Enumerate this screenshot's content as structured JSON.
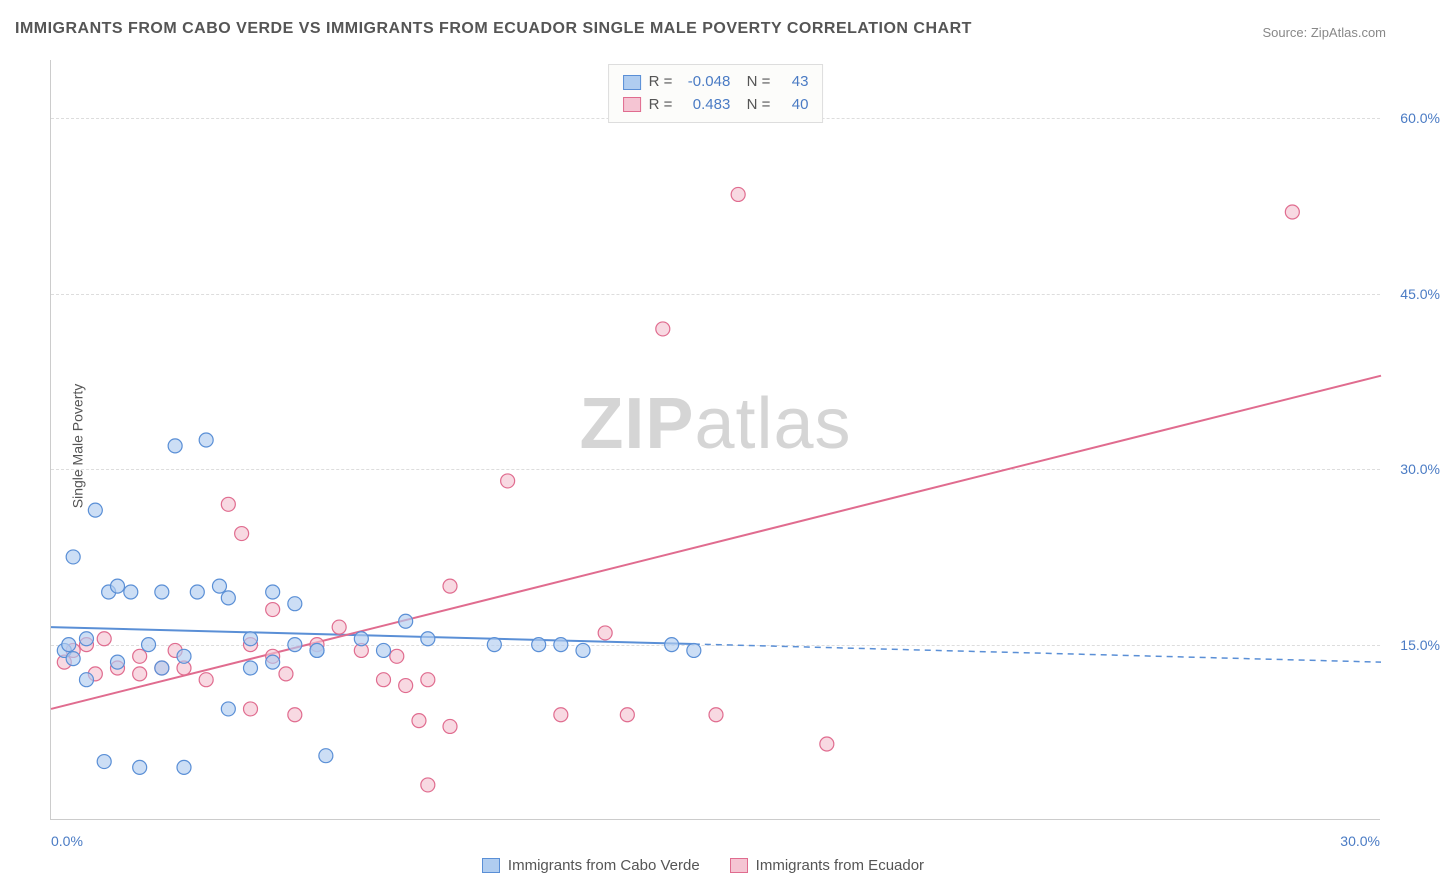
{
  "title": "IMMIGRANTS FROM CABO VERDE VS IMMIGRANTS FROM ECUADOR SINGLE MALE POVERTY CORRELATION CHART",
  "source": "Source: ZipAtlas.com",
  "y_axis_title": "Single Male Poverty",
  "watermark_bold": "ZIP",
  "watermark_rest": "atlas",
  "chart": {
    "type": "scatter",
    "xlim": [
      0,
      30
    ],
    "ylim": [
      0,
      65
    ],
    "x_ticks": [
      "0.0%",
      "30.0%"
    ],
    "y_ticks": [
      {
        "value": 15,
        "label": "15.0%"
      },
      {
        "value": 30,
        "label": "30.0%"
      },
      {
        "value": 45,
        "label": "45.0%"
      },
      {
        "value": 60,
        "label": "60.0%"
      }
    ],
    "background_color": "#ffffff",
    "grid_color": "#dddddd",
    "series": [
      {
        "name": "Immigrants from Cabo Verde",
        "color_fill": "#b0cdf0",
        "color_stroke": "#5a8fd6",
        "r_value": "-0.048",
        "n_value": "43",
        "marker_radius": 7,
        "trend": {
          "x1": 0,
          "y1": 16.5,
          "x2": 30,
          "y2": 13.5,
          "solid_until_x": 14.5
        },
        "points": [
          [
            0.3,
            14.5
          ],
          [
            0.4,
            15.0
          ],
          [
            0.5,
            13.8
          ],
          [
            0.5,
            22.5
          ],
          [
            0.8,
            15.5
          ],
          [
            0.8,
            12.0
          ],
          [
            1.0,
            26.5
          ],
          [
            1.2,
            5.0
          ],
          [
            1.3,
            19.5
          ],
          [
            1.5,
            13.5
          ],
          [
            1.5,
            20.0
          ],
          [
            1.8,
            19.5
          ],
          [
            2.0,
            4.5
          ],
          [
            2.2,
            15.0
          ],
          [
            2.5,
            13.0
          ],
          [
            2.5,
            19.5
          ],
          [
            2.8,
            32.0
          ],
          [
            3.0,
            4.5
          ],
          [
            3.0,
            14.0
          ],
          [
            3.3,
            19.5
          ],
          [
            3.5,
            32.5
          ],
          [
            3.8,
            20.0
          ],
          [
            4.0,
            19.0
          ],
          [
            4.0,
            9.5
          ],
          [
            4.5,
            15.5
          ],
          [
            4.5,
            13.0
          ],
          [
            5.0,
            19.5
          ],
          [
            5.0,
            13.5
          ],
          [
            5.5,
            18.5
          ],
          [
            5.5,
            15.0
          ],
          [
            6.0,
            14.5
          ],
          [
            6.0,
            14.5
          ],
          [
            6.2,
            5.5
          ],
          [
            7.0,
            15.5
          ],
          [
            7.5,
            14.5
          ],
          [
            8.0,
            17.0
          ],
          [
            8.5,
            15.5
          ],
          [
            10.0,
            15.0
          ],
          [
            11.0,
            15.0
          ],
          [
            11.5,
            15.0
          ],
          [
            12.0,
            14.5
          ],
          [
            14.0,
            15.0
          ],
          [
            14.5,
            14.5
          ]
        ]
      },
      {
        "name": "Immigrants from Ecuador",
        "color_fill": "#f5c5d3",
        "color_stroke": "#e06c8f",
        "r_value": "0.483",
        "n_value": "40",
        "marker_radius": 7,
        "trend": {
          "x1": 0,
          "y1": 9.5,
          "x2": 30,
          "y2": 38.0,
          "solid_until_x": 30
        },
        "points": [
          [
            0.3,
            13.5
          ],
          [
            0.5,
            14.5
          ],
          [
            0.8,
            15.0
          ],
          [
            1.0,
            12.5
          ],
          [
            1.2,
            15.5
          ],
          [
            1.5,
            13.0
          ],
          [
            2.0,
            12.5
          ],
          [
            2.0,
            14.0
          ],
          [
            2.5,
            13.0
          ],
          [
            2.8,
            14.5
          ],
          [
            3.0,
            13.0
          ],
          [
            3.5,
            12.0
          ],
          [
            4.0,
            27.0
          ],
          [
            4.3,
            24.5
          ],
          [
            4.5,
            9.5
          ],
          [
            4.5,
            15.0
          ],
          [
            5.0,
            14.0
          ],
          [
            5.0,
            18.0
          ],
          [
            5.3,
            12.5
          ],
          [
            5.5,
            9.0
          ],
          [
            6.5,
            16.5
          ],
          [
            7.0,
            14.5
          ],
          [
            7.5,
            12.0
          ],
          [
            7.8,
            14.0
          ],
          [
            8.0,
            11.5
          ],
          [
            8.3,
            8.5
          ],
          [
            8.5,
            12.0
          ],
          [
            8.5,
            3.0
          ],
          [
            9.0,
            20.0
          ],
          [
            9.0,
            8.0
          ],
          [
            10.3,
            29.0
          ],
          [
            11.5,
            9.0
          ],
          [
            12.5,
            16.0
          ],
          [
            13.0,
            9.0
          ],
          [
            13.8,
            42.0
          ],
          [
            15.0,
            9.0
          ],
          [
            15.5,
            53.5
          ],
          [
            17.5,
            6.5
          ],
          [
            28.0,
            52.0
          ],
          [
            6.0,
            15.0
          ]
        ]
      }
    ]
  },
  "legend_bottom": [
    {
      "label": "Immigrants from Cabo Verde",
      "fill": "#b0cdf0",
      "stroke": "#5a8fd6"
    },
    {
      "label": "Immigrants from Ecuador",
      "fill": "#f5c5d3",
      "stroke": "#e06c8f"
    }
  ]
}
